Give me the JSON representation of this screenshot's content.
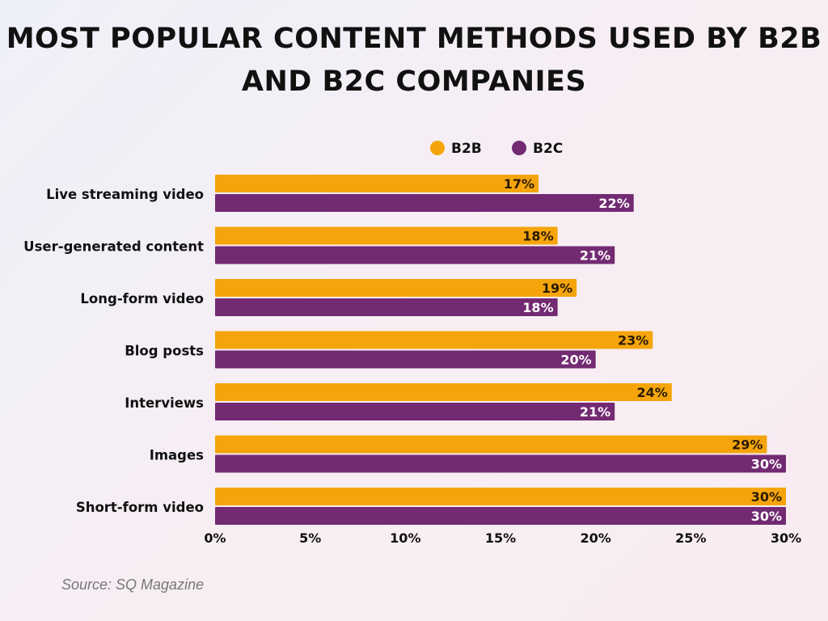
{
  "chart_data": {
    "type": "bar",
    "orientation": "horizontal",
    "title": "MOST POPULAR CONTENT METHODS USED BY B2B AND B2C COMPANIES",
    "categories": [
      "Live streaming video",
      "User-generated content",
      "Long-form video",
      "Blog posts",
      "Interviews",
      "Images",
      "Short-form video"
    ],
    "series": [
      {
        "name": "B2B",
        "color": "#F5A50B",
        "values": [
          17,
          18,
          19,
          23,
          24,
          29,
          30
        ]
      },
      {
        "name": "B2C",
        "color": "#722A72",
        "values": [
          22,
          21,
          18,
          20,
          21,
          30,
          30
        ]
      }
    ],
    "xlim": [
      0,
      30
    ],
    "xticks": [
      "0%",
      "5%",
      "10%",
      "15%",
      "20%",
      "25%",
      "30%"
    ],
    "legend": "top",
    "grid": false,
    "source": "Source: SQ Magazine"
  }
}
